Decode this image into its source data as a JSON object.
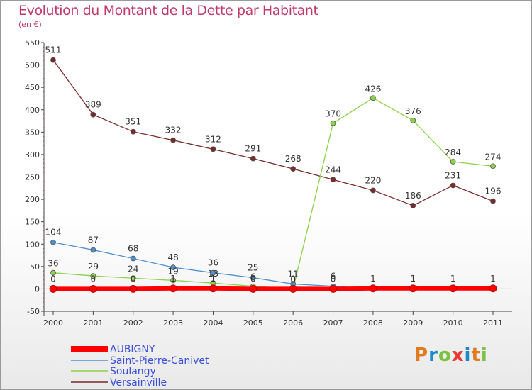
{
  "header": {
    "title": "Evolution du Montant de la Dette par Habitant",
    "subtitle": "(en €)"
  },
  "logo": {
    "letters": [
      "P",
      "r",
      "o",
      "x",
      "i",
      "t",
      "i"
    ],
    "colors": [
      "#e07a1f",
      "#1e88c8",
      "#7cc242",
      "#e8392f",
      "#1e88c8",
      "#e07a1f",
      "#7cc242"
    ]
  },
  "chart_data": {
    "type": "line",
    "x": [
      "2000",
      "2001",
      "2002",
      "2003",
      "2004",
      "2005",
      "2006",
      "2007",
      "2008",
      "2009",
      "2010",
      "2011"
    ],
    "ylim": [
      -50,
      550
    ],
    "yticks": [
      "-50",
      "0",
      "50",
      "100",
      "150",
      "200",
      "250",
      "300",
      "350",
      "400",
      "450",
      "500",
      "550"
    ],
    "grid": false,
    "legend_position": "bottom-left",
    "series": [
      {
        "name": "AUBIGNY",
        "color": "#ff0000",
        "values": [
          0,
          0,
          0,
          1,
          1,
          0,
          0,
          0,
          1,
          1,
          1,
          1
        ],
        "labels": [
          "0",
          "0",
          "0",
          "1",
          "1",
          "0",
          "0",
          "0",
          "1",
          "1",
          "1",
          "1"
        ]
      },
      {
        "name": "Saint-Pierre-Canivet",
        "color": "#4f8fd0",
        "values": [
          104,
          87,
          68,
          48,
          36,
          25,
          11,
          6,
          0,
          0,
          0,
          0
        ],
        "labels": [
          "104",
          "87",
          "68",
          "48",
          "36",
          "25",
          "11",
          "6",
          "",
          "",
          "",
          ""
        ]
      },
      {
        "name": "Soulangy",
        "color": "#8dd14b",
        "values": [
          36,
          29,
          24,
          19,
          13,
          6,
          0,
          370,
          426,
          376,
          284,
          274
        ],
        "labels": [
          "36",
          "29",
          "24",
          "19",
          "13",
          "6",
          "0",
          "370",
          "426",
          "376",
          "284",
          "274"
        ]
      },
      {
        "name": "Versainville",
        "color": "#7a2a2a",
        "values": [
          511,
          389,
          351,
          332,
          312,
          291,
          268,
          244,
          220,
          186,
          231,
          196
        ],
        "labels": [
          "511",
          "389",
          "351",
          "332",
          "312",
          "291",
          "268",
          "244",
          "220",
          "186",
          "231",
          "196"
        ]
      }
    ]
  }
}
